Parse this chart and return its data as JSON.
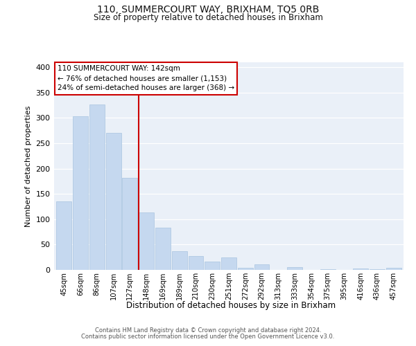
{
  "title": "110, SUMMERCOURT WAY, BRIXHAM, TQ5 0RB",
  "subtitle": "Size of property relative to detached houses in Brixham",
  "xlabel": "Distribution of detached houses by size in Brixham",
  "ylabel": "Number of detached properties",
  "bar_labels": [
    "45sqm",
    "66sqm",
    "86sqm",
    "107sqm",
    "127sqm",
    "148sqm",
    "169sqm",
    "189sqm",
    "210sqm",
    "230sqm",
    "251sqm",
    "272sqm",
    "292sqm",
    "313sqm",
    "333sqm",
    "354sqm",
    "375sqm",
    "395sqm",
    "416sqm",
    "436sqm",
    "457sqm"
  ],
  "bar_values": [
    135,
    303,
    326,
    271,
    182,
    113,
    83,
    37,
    27,
    17,
    24,
    4,
    11,
    0,
    5,
    0,
    2,
    0,
    3,
    2,
    4
  ],
  "bar_color": "#c5d8ef",
  "bar_edge_color": "#a8c4df",
  "vline_bar_index": 5,
  "vline_color": "#cc0000",
  "ylim": [
    0,
    410
  ],
  "yticks": [
    0,
    50,
    100,
    150,
    200,
    250,
    300,
    350,
    400
  ],
  "annotation_title": "110 SUMMERCOURT WAY: 142sqm",
  "annotation_line1": "← 76% of detached houses are smaller (1,153)",
  "annotation_line2": "24% of semi-detached houses are larger (368) →",
  "annotation_box_color": "#ffffff",
  "annotation_box_edge": "#cc0000",
  "footer_line1": "Contains HM Land Registry data © Crown copyright and database right 2024.",
  "footer_line2": "Contains public sector information licensed under the Open Government Licence v3.0.",
  "plot_bg_color": "#eaf0f8"
}
